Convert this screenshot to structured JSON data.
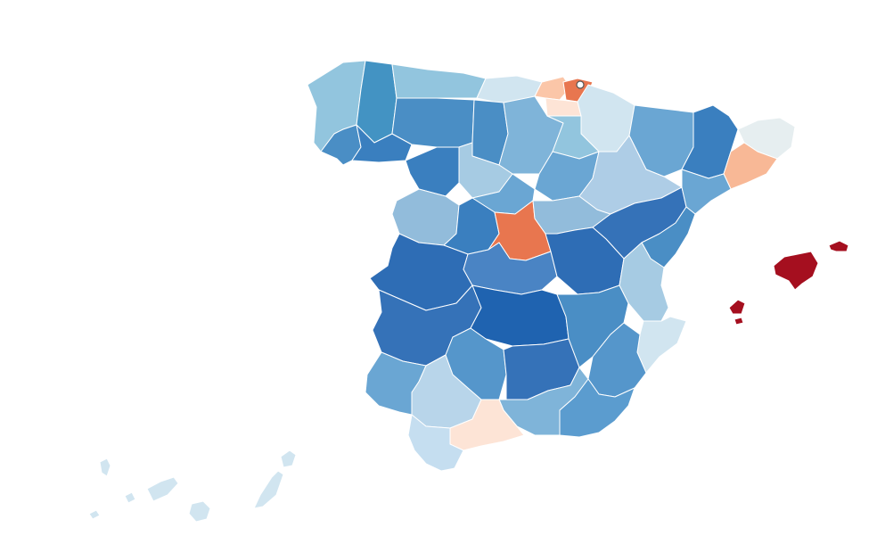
{
  "map": {
    "regions": [
      {
        "id": "a-coruna",
        "fill": "#92c5de"
      },
      {
        "id": "lugo",
        "fill": "#4393c3"
      },
      {
        "id": "pontevedra",
        "fill": "#4a8ec5"
      },
      {
        "id": "ourense",
        "fill": "#3a7fbf"
      },
      {
        "id": "asturias",
        "fill": "#92c5de"
      },
      {
        "id": "cantabria",
        "fill": "#d1e5f0"
      },
      {
        "id": "bizkaia",
        "fill": "#fbc6a8"
      },
      {
        "id": "gipuzkoa",
        "fill": "#e8764f"
      },
      {
        "id": "araba",
        "fill": "#fde4d6"
      },
      {
        "id": "navarra",
        "fill": "#d1e5f0"
      },
      {
        "id": "leon",
        "fill": "#4a8ec5"
      },
      {
        "id": "palencia",
        "fill": "#4a8ec5"
      },
      {
        "id": "burgos",
        "fill": "#7fb4d9"
      },
      {
        "id": "la-rioja",
        "fill": "#92c5de"
      },
      {
        "id": "zamora",
        "fill": "#3a7fbf"
      },
      {
        "id": "valladolid",
        "fill": "#a6cbe3"
      },
      {
        "id": "soria",
        "fill": "#6aa6d3"
      },
      {
        "id": "salamanca",
        "fill": "#92bcdb"
      },
      {
        "id": "segovia",
        "fill": "#6aa6d3"
      },
      {
        "id": "avila",
        "fill": "#3a7fbf"
      },
      {
        "id": "madrid",
        "fill": "#e8764f"
      },
      {
        "id": "guadalajara",
        "fill": "#92bcdb"
      },
      {
        "id": "huesca",
        "fill": "#6aa6d3"
      },
      {
        "id": "zaragoza",
        "fill": "#aecde6"
      },
      {
        "id": "teruel",
        "fill": "#3572b8"
      },
      {
        "id": "lleida",
        "fill": "#3a7fbf"
      },
      {
        "id": "girona",
        "fill": "#e6eef0"
      },
      {
        "id": "barcelona",
        "fill": "#f8b896"
      },
      {
        "id": "tarragona",
        "fill": "#6aa6d3"
      },
      {
        "id": "caceres",
        "fill": "#2e6db5"
      },
      {
        "id": "toledo",
        "fill": "#4a84c4"
      },
      {
        "id": "cuenca",
        "fill": "#2e6db5"
      },
      {
        "id": "castellon",
        "fill": "#4a8ec5"
      },
      {
        "id": "valencia",
        "fill": "#a6cbe3"
      },
      {
        "id": "badajoz",
        "fill": "#3572b8"
      },
      {
        "id": "ciudad-real",
        "fill": "#1f63b0"
      },
      {
        "id": "albacete",
        "fill": "#4a8ec5"
      },
      {
        "id": "alicante",
        "fill": "#d1e5f0"
      },
      {
        "id": "huelva",
        "fill": "#6aa6d3"
      },
      {
        "id": "sevilla",
        "fill": "#b8d5ea"
      },
      {
        "id": "cordoba",
        "fill": "#5596cb"
      },
      {
        "id": "jaen",
        "fill": "#3572b8"
      },
      {
        "id": "murcia",
        "fill": "#5596cb"
      },
      {
        "id": "granada",
        "fill": "#7fb4d9"
      },
      {
        "id": "almeria",
        "fill": "#5b9ccf"
      },
      {
        "id": "malaga",
        "fill": "#fde4d6"
      },
      {
        "id": "cadiz",
        "fill": "#c5def0"
      },
      {
        "id": "mallorca",
        "fill": "#a50f1f"
      },
      {
        "id": "menorca",
        "fill": "#a50f1f"
      },
      {
        "id": "ibiza",
        "fill": "#a50f1f"
      },
      {
        "id": "formentera",
        "fill": "#a50f1f"
      },
      {
        "id": "canarias",
        "fill": "#d1e5f0"
      }
    ],
    "marker": {
      "fill": "#ffffff",
      "stroke": "#555555"
    }
  }
}
